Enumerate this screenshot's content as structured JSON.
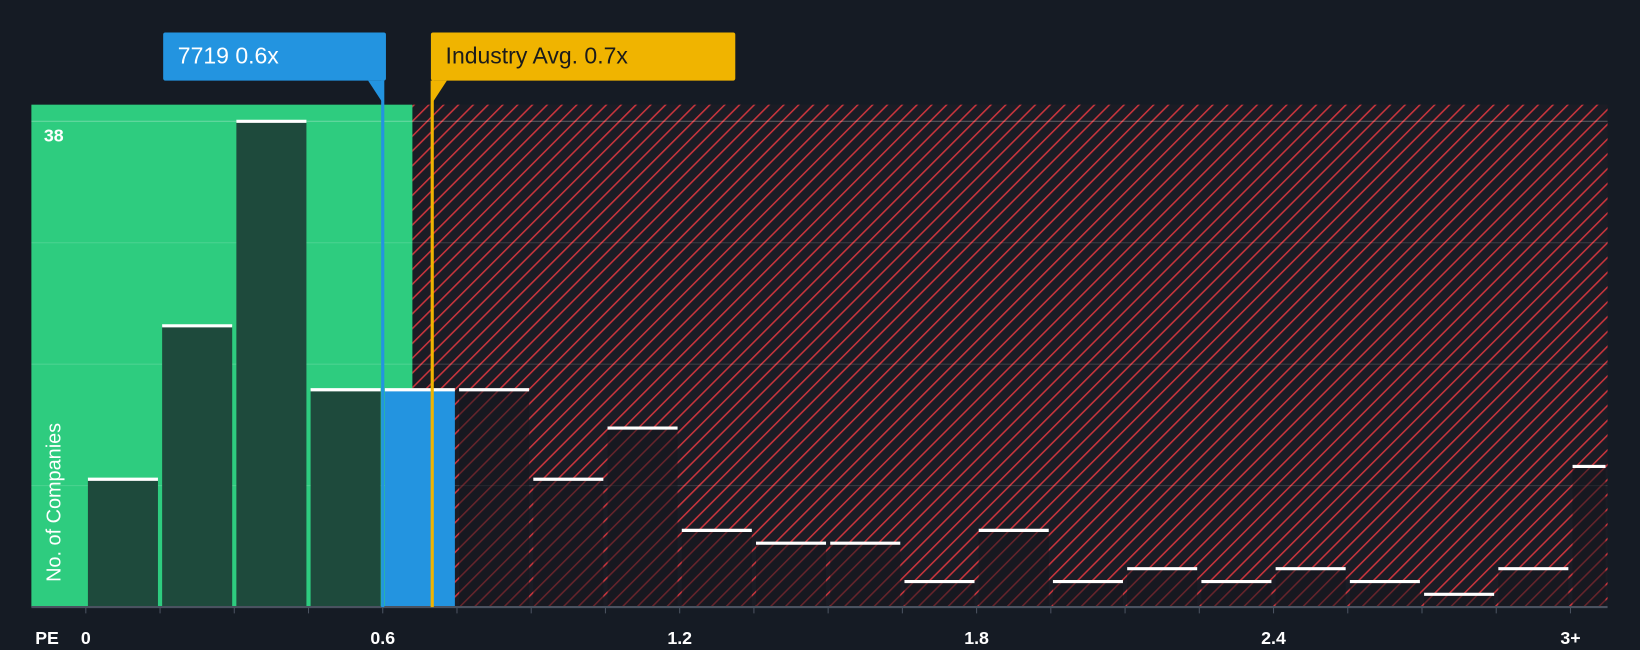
{
  "chart_data": {
    "type": "histogram",
    "x_label": "PE",
    "y_label": "No. of Companies",
    "bins": [
      0,
      0.15,
      0.3,
      0.45,
      0.6,
      0.75,
      0.9,
      1.05,
      1.2,
      1.35,
      1.5,
      1.65,
      1.8,
      1.95,
      2.1,
      2.25,
      2.4,
      2.55,
      2.7,
      2.85,
      3.0,
      3.15
    ],
    "values": [
      10,
      22,
      38,
      17,
      17,
      17,
      10,
      14,
      6,
      5,
      5,
      2,
      6,
      2,
      3,
      2,
      3,
      2,
      1,
      3,
      11
    ],
    "highlight_index": 4,
    "highlight_color": "#2394e0",
    "fair_region_end": 0.66,
    "fair_color": "#2ecc7f",
    "overvalued_color": "#c8353d",
    "xlim": [
      -0.11,
      3.075
    ],
    "xticks": [
      0,
      0.6,
      1.2,
      1.8,
      2.4,
      {
        "value": 3,
        "label": "3+"
      }
    ],
    "ylim": [
      0,
      39.3
    ],
    "yticks": [
      38
    ],
    "ygrid": [
      9.5,
      19,
      28.5,
      38
    ],
    "annotations": [
      {
        "text": "7719 0.6x",
        "x": 0.6,
        "color": "#2394e0"
      },
      {
        "text": "Industry Avg. 0.7x",
        "x": 0.7,
        "color": "#f0b400"
      }
    ]
  }
}
